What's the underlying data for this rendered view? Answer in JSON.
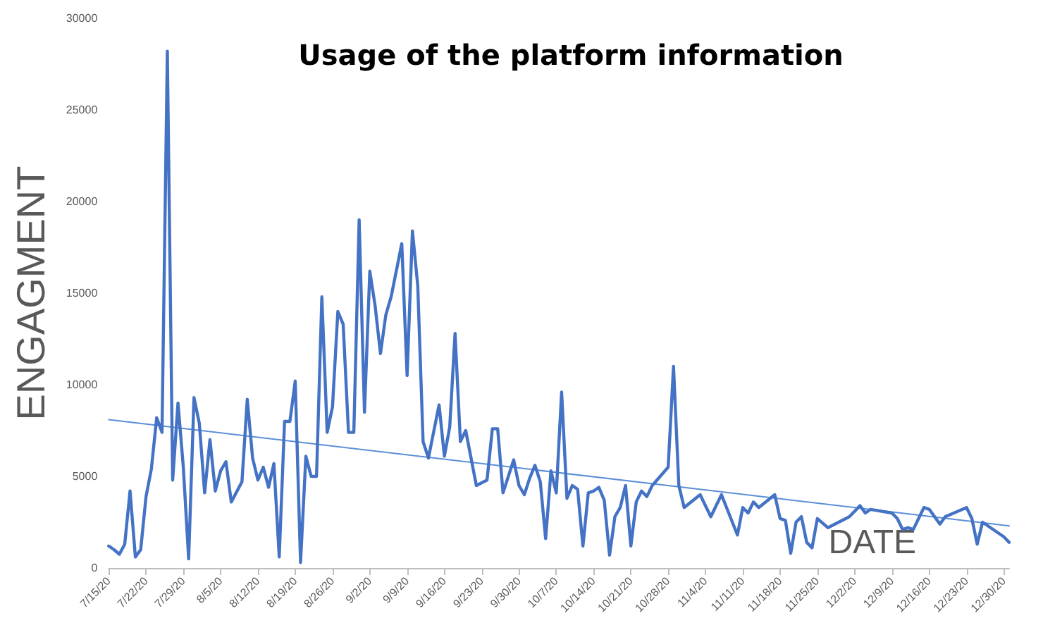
{
  "chart_data": {
    "type": "line",
    "title": "Usage of the platform information",
    "xlabel": "DATE",
    "ylabel": "ENGAGMENT",
    "marker": "none",
    "line_style": "solid",
    "xlim": [
      "--07-15",
      "--12-31"
    ],
    "xticks": [
      {
        "value": "--07-15",
        "label": "7/15/20"
      },
      {
        "value": "--07-22",
        "label": "7/22/20"
      },
      {
        "value": "--07-29",
        "label": "7/29/20"
      },
      {
        "value": "--08-05",
        "label": "8/5/20"
      },
      {
        "value": "--08-12",
        "label": "8/12/20"
      },
      {
        "value": "--08-19",
        "label": "8/19/20"
      },
      {
        "value": "--08-26",
        "label": "8/26/20"
      },
      {
        "value": "--09-02",
        "label": "9/2/20"
      },
      {
        "value": "--09-09",
        "label": "9/9/20"
      },
      {
        "value": "--09-16",
        "label": "9/16/20"
      },
      {
        "value": "--09-23",
        "label": "9/23/20"
      },
      {
        "value": "--09-30",
        "label": "9/30/20"
      },
      {
        "value": "--10-07",
        "label": "10/7/20"
      },
      {
        "value": "--10-14",
        "label": "10/14/20"
      },
      {
        "value": "--10-21",
        "label": "10/21/20"
      },
      {
        "value": "--10-28",
        "label": "10/28/20"
      },
      {
        "value": "--11-04",
        "label": "11/4/20"
      },
      {
        "value": "--11-11",
        "label": "11/11/20"
      },
      {
        "value": "--11-18",
        "label": "11/18/20"
      },
      {
        "value": "--11-25",
        "label": "11/25/20"
      },
      {
        "value": "--12-02",
        "label": "12/2/20"
      },
      {
        "value": "--12-09",
        "label": "12/9/20"
      },
      {
        "value": "--12-16",
        "label": "12/16/20"
      },
      {
        "value": "--12-23",
        "label": "12/23/20"
      },
      {
        "value": "--12-30",
        "label": "12/30/20"
      }
    ],
    "ylim": [
      0,
      30000
    ],
    "yticks": [
      0,
      5000,
      10000,
      15000,
      20000,
      25000,
      30000
    ],
    "series": [
      {
        "color": "#4472c4",
        "x": [
          "--07-15",
          "--07-16",
          "--07-17",
          "--07-18",
          "--07-19",
          "--07-20",
          "--07-21",
          "--07-22",
          "--07-23",
          "--07-24",
          "--07-25",
          "--07-26",
          "--07-27",
          "--07-28",
          "--07-29",
          "--07-30",
          "--07-31",
          "--08-01",
          "--08-02",
          "--08-03",
          "--08-04",
          "--08-05",
          "--08-06",
          "--08-07",
          "--08-09",
          "--08-10",
          "--08-11",
          "--08-12",
          "--08-13",
          "--08-14",
          "--08-15",
          "--08-16",
          "--08-17",
          "--08-18",
          "--08-19",
          "--08-20",
          "--08-21",
          "--08-22",
          "--08-23",
          "--08-24",
          "--08-25",
          "--08-26",
          "--08-27",
          "--08-28",
          "--08-29",
          "--08-30",
          "--08-31",
          "--09-01",
          "--09-02",
          "--09-03",
          "--09-04",
          "--09-05",
          "--09-06",
          "--09-08",
          "--09-09",
          "--09-10",
          "--09-11",
          "--09-12",
          "--09-13",
          "--09-15",
          "--09-16",
          "--09-17",
          "--09-18",
          "--09-19",
          "--09-20",
          "--09-21",
          "--09-22",
          "--09-24",
          "--09-25",
          "--09-26",
          "--09-27",
          "--09-29",
          "--09-30",
          "--10-01",
          "--10-02",
          "--10-03",
          "--10-04",
          "--10-05",
          "--10-06",
          "--10-07",
          "--10-08",
          "--10-09",
          "--10-10",
          "--10-11",
          "--10-12",
          "--10-13",
          "--10-14",
          "--10-15",
          "--10-16",
          "--10-17",
          "--10-18",
          "--10-19",
          "--10-20",
          "--10-21",
          "--10-22",
          "--10-23",
          "--10-24",
          "--10-25",
          "--10-28",
          "--10-29",
          "--10-30",
          "--10-31",
          "--11-03",
          "--11-05",
          "--11-07",
          "--11-10",
          "--11-11",
          "--11-12",
          "--11-13",
          "--11-14",
          "--11-17",
          "--11-18",
          "--11-19",
          "--11-20",
          "--11-21",
          "--11-22",
          "--11-23",
          "--11-24",
          "--11-25",
          "--11-27",
          "--12-01",
          "--12-03",
          "--12-04",
          "--12-05",
          "--12-09",
          "--12-10",
          "--12-11",
          "--12-12",
          "--12-13",
          "--12-15",
          "--12-16",
          "--12-18",
          "--12-19",
          "--12-23",
          "--12-24",
          "--12-25",
          "--12-26",
          "--12-30",
          "--12-31"
        ],
        "values": [
          1200,
          1000,
          750,
          1300,
          4200,
          600,
          1000,
          3900,
          5400,
          8200,
          7400,
          28200,
          4800,
          9000,
          5500,
          500,
          9300,
          7900,
          4100,
          7000,
          4200,
          5300,
          5800,
          3600,
          4700,
          9200,
          6000,
          4800,
          5500,
          4400,
          5700,
          600,
          8000,
          8000,
          10200,
          300,
          6100,
          5000,
          5000,
          14800,
          7400,
          8800,
          14000,
          13300,
          7400,
          7400,
          19000,
          8500,
          16200,
          14300,
          11700,
          13800,
          14800,
          17700,
          10500,
          18400,
          15400,
          6900,
          6000,
          8900,
          6100,
          7700,
          12800,
          6900,
          7500,
          6000,
          4500,
          4800,
          7600,
          7600,
          4100,
          5900,
          4500,
          4000,
          4900,
          5600,
          4700,
          1600,
          5300,
          4100,
          9600,
          3800,
          4500,
          4300,
          1200,
          4100,
          4200,
          4400,
          3700,
          700,
          2800,
          3300,
          4500,
          1200,
          3600,
          4200,
          3900,
          4500,
          5500,
          11000,
          4500,
          3300,
          4000,
          2800,
          4000,
          1800,
          3300,
          3000,
          3600,
          3300,
          4000,
          2700,
          2600,
          800,
          2500,
          2800,
          1400,
          1100,
          2700,
          2200,
          2800,
          3400,
          3000,
          3200,
          3000,
          2700,
          2100,
          2200,
          2100,
          3300,
          3200,
          2400,
          2800,
          3300,
          2700,
          1300,
          2500,
          1700,
          1400
        ]
      },
      {
        "type": "line",
        "color": "#5b8fd6",
        "x": [
          "--07-15",
          "--12-31"
        ],
        "values": [
          8100,
          2300
        ]
      }
    ]
  }
}
